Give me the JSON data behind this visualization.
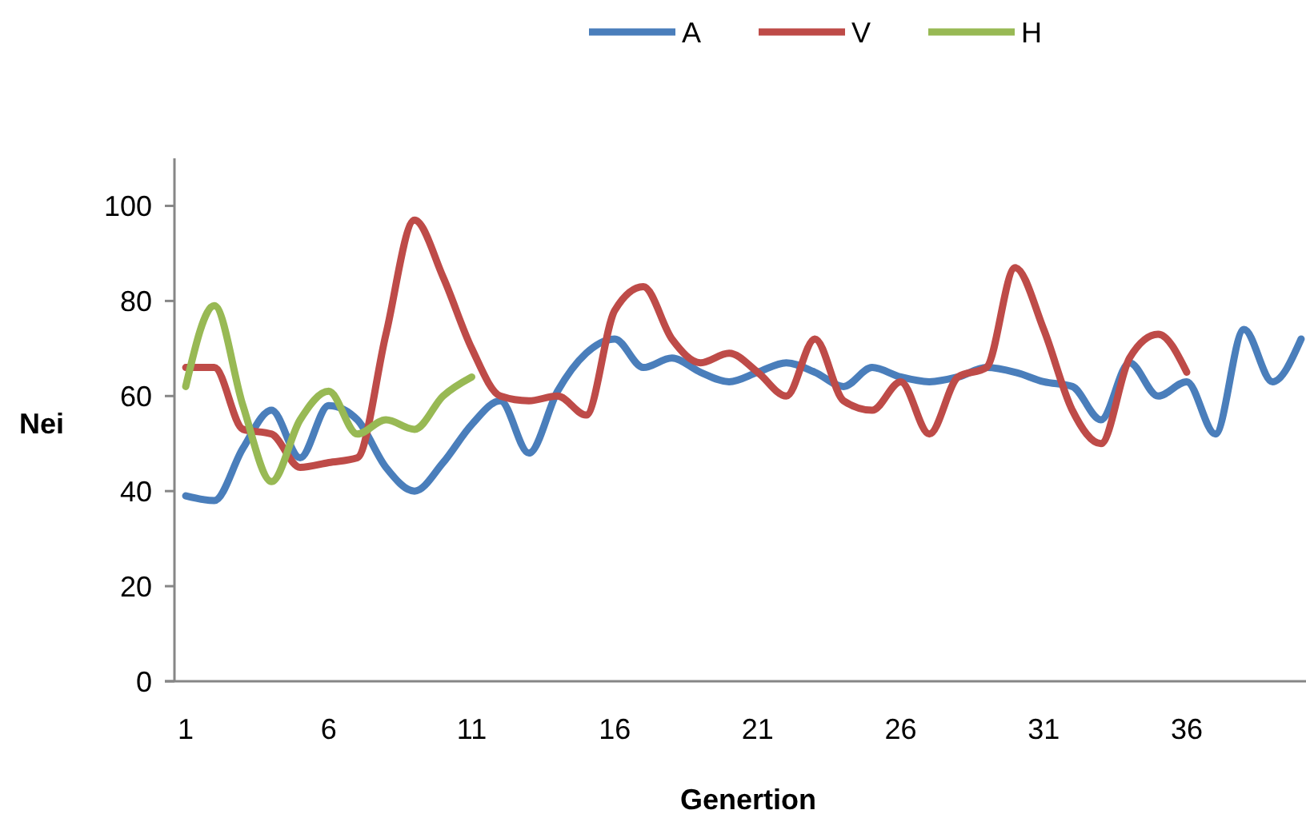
{
  "chart_data": {
    "type": "line",
    "xlabel": "Genertion",
    "ylabel": "Nei",
    "x": [
      1,
      2,
      3,
      4,
      5,
      6,
      7,
      8,
      9,
      10,
      11,
      12,
      13,
      14,
      15,
      16,
      17,
      18,
      19,
      20,
      21,
      22,
      23,
      24,
      25,
      26,
      27,
      28,
      29,
      30,
      31,
      32,
      33,
      34,
      35,
      36,
      37,
      38,
      39,
      40
    ],
    "series": [
      {
        "name": "A",
        "color": "#4a7ebb",
        "values": [
          39,
          38,
          49,
          57,
          47,
          58,
          55,
          45,
          40,
          46,
          54,
          59,
          48,
          61,
          69,
          72,
          66,
          68,
          65,
          63,
          65,
          67,
          65,
          62,
          66,
          64,
          63,
          64,
          66,
          65,
          63,
          62,
          55,
          67,
          60,
          63,
          52,
          74,
          63,
          72
        ]
      },
      {
        "name": "V",
        "color": "#be4b48",
        "x": [
          1,
          2,
          3,
          4,
          5,
          6,
          7,
          8,
          9,
          10,
          11,
          12,
          13,
          14,
          15,
          16,
          17,
          18,
          19,
          20,
          21,
          22,
          23,
          24,
          25,
          26,
          27,
          28,
          29,
          30,
          31,
          32,
          33,
          34,
          35,
          36
        ],
        "values": [
          66,
          66,
          53,
          52,
          45,
          46,
          47,
          73,
          97,
          85,
          70,
          60,
          59,
          60,
          56,
          78,
          83,
          72,
          67,
          69,
          65,
          60,
          72,
          59,
          57,
          63,
          52,
          64,
          66,
          87,
          74,
          57,
          50,
          68,
          73,
          65
        ]
      },
      {
        "name": "H",
        "color": "#98b954",
        "x": [
          1,
          2,
          3,
          4,
          5,
          6,
          7,
          8,
          9,
          10,
          11
        ],
        "values": [
          62,
          79,
          58,
          42,
          55,
          61,
          52,
          55,
          53,
          60,
          64
        ]
      }
    ],
    "xlim": [
      0.27,
      40.17
    ],
    "xticks": [
      1,
      6,
      11,
      16,
      21,
      26,
      31,
      36
    ],
    "ylim": [
      0,
      110
    ],
    "yticks": [
      0,
      20,
      40,
      60,
      80,
      100
    ],
    "grid": false,
    "legend": "top",
    "marker": "none",
    "line_style": "solid"
  }
}
